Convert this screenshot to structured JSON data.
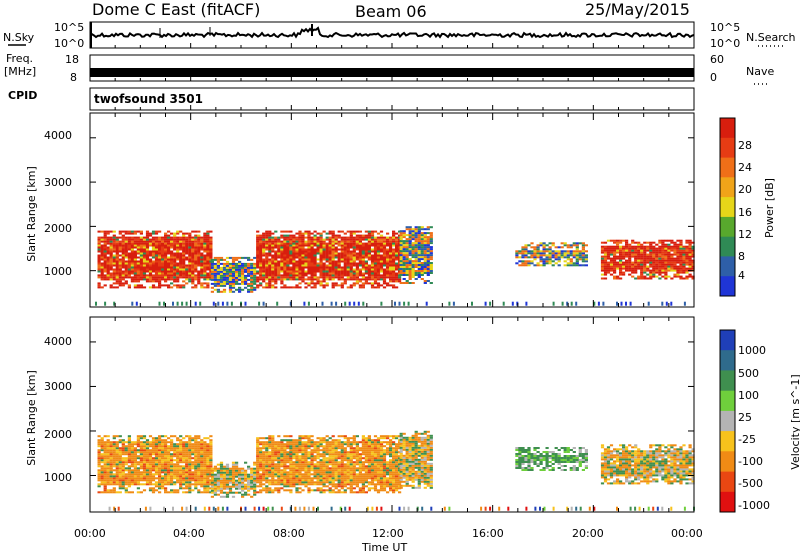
{
  "header": {
    "title": "Dome C East (fitACF)",
    "beam": "Beam 06",
    "date": "25/May/2015"
  },
  "top_panels": {
    "nsky_label": "N.Sky",
    "nsearch_label": "N.Search",
    "nsky_ticks": [
      "10^5",
      "10^0"
    ],
    "nsearch_ticks": [
      "10^5",
      "10^0"
    ],
    "freq_label": "Freq.",
    "freq_unit": "[MHz]",
    "freq_ticks": [
      "18",
      "8"
    ],
    "nave_label": "Nave",
    "nave_ticks": [
      "60",
      "0"
    ],
    "cpid_label": "CPID",
    "cpid_value": "twofsound 3501"
  },
  "chart_data": [
    {
      "type": "heatmap",
      "quantity": "Power",
      "ylabel": "Slant Range [km]",
      "ylim": [
        180,
        4560
      ],
      "yticks": [
        1000,
        2000,
        3000,
        4000
      ],
      "colorbar_label": "Power [dB]",
      "colorbar_ticks": [
        4,
        8,
        12,
        16,
        20,
        24,
        28
      ],
      "colorscale": [
        "#1f35d6",
        "#2e5fa8",
        "#2f8a55",
        "#58a82d",
        "#e6d619",
        "#f0a419",
        "#ef6f18",
        "#e63c14",
        "#d81e0e"
      ],
      "regions": [
        {
          "t0": 0.3,
          "t1": 4.8,
          "r0": 600,
          "r1": 1900,
          "level": "high"
        },
        {
          "t0": 4.8,
          "t1": 6.6,
          "r0": 500,
          "r1": 1300,
          "level": "mid"
        },
        {
          "t0": 6.6,
          "t1": 12.3,
          "r0": 600,
          "r1": 1900,
          "level": "high"
        },
        {
          "t0": 12.3,
          "t1": 13.5,
          "r0": 700,
          "r1": 2000,
          "level": "mid"
        },
        {
          "t0": 16.9,
          "t1": 19.7,
          "r0": 1100,
          "r1": 1600,
          "level": "mid"
        },
        {
          "t0": 20.3,
          "t1": 24.0,
          "r0": 800,
          "r1": 1700,
          "level": "high"
        }
      ]
    },
    {
      "type": "heatmap",
      "quantity": "Velocity",
      "xlabel": "Time UT",
      "ylabel": "Slant Range [km]",
      "xlim": [
        0,
        24
      ],
      "xticks": [
        "00:00",
        "04:00",
        "08:00",
        "12:00",
        "16:00",
        "20:00",
        "00:00"
      ],
      "ylim": [
        180,
        4560
      ],
      "yticks": [
        1000,
        2000,
        3000,
        4000
      ],
      "colorbar_label": "Velocity [m s^-1]",
      "colorbar_ticks": [
        1000,
        500,
        100,
        25,
        -25,
        -100,
        -500,
        -1000
      ],
      "colorscale": [
        "#1f3fb8",
        "#2f6b8c",
        "#3f8f4f",
        "#6fcf3c",
        "#b4b4b4",
        "#f7c21c",
        "#f08b15",
        "#ea4712",
        "#e01010"
      ],
      "regions": [
        {
          "t0": 0.3,
          "t1": 4.8,
          "r0": 600,
          "r1": 1900,
          "level": "negative"
        },
        {
          "t0": 4.8,
          "t1": 6.6,
          "r0": 500,
          "r1": 1300,
          "level": "mixed"
        },
        {
          "t0": 6.6,
          "t1": 12.3,
          "r0": 600,
          "r1": 1900,
          "level": "negative"
        },
        {
          "t0": 12.3,
          "t1": 13.5,
          "r0": 700,
          "r1": 2000,
          "level": "mixed"
        },
        {
          "t0": 16.9,
          "t1": 19.7,
          "r0": 1100,
          "r1": 1600,
          "level": "positive"
        },
        {
          "t0": 20.3,
          "t1": 24.0,
          "r0": 800,
          "r1": 1700,
          "level": "mixed"
        }
      ]
    }
  ]
}
